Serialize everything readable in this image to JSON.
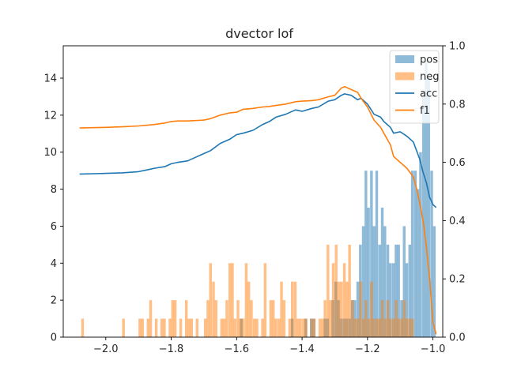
{
  "chart_data": {
    "type": "bar",
    "title": "dvector lof",
    "xlabel": "",
    "ylabel": "",
    "xlim": [
      -2.13,
      -0.97
    ],
    "ylim": [
      0,
      15.75
    ],
    "y2lim": [
      0,
      1
    ],
    "x_ticks": [
      -2.0,
      -1.8,
      -1.6,
      -1.4,
      -1.2,
      -1.0
    ],
    "x_tick_labels": [
      "−2.0",
      "−1.8",
      "−1.6",
      "−1.4",
      "−1.2",
      "−1.0"
    ],
    "y_ticks": [
      0,
      2,
      4,
      6,
      8,
      10,
      12,
      14
    ],
    "y_tick_labels": [
      "0",
      "2",
      "4",
      "6",
      "8",
      "10",
      "12",
      "14"
    ],
    "y2_ticks": [
      0,
      0.2,
      0.4,
      0.6,
      0.8,
      1.0
    ],
    "y2_tick_labels": [
      "0.0",
      "0.2",
      "0.4",
      "0.6",
      "0.8",
      "1.0"
    ],
    "legend_position": "top-right",
    "histograms": [
      {
        "name": "pos",
        "color": "#1f77b4",
        "alpha": 0.5,
        "bin_width": 0.0083,
        "bins": [
          [
            -1.59,
            1
          ],
          [
            -1.434,
            1
          ],
          [
            -1.393,
            1
          ],
          [
            -1.376,
            1
          ],
          [
            -1.368,
            1
          ],
          [
            -1.334,
            1
          ],
          [
            -1.326,
            1
          ],
          [
            -1.31,
            2
          ],
          [
            -1.301,
            3
          ],
          [
            -1.293,
            2
          ],
          [
            -1.285,
            1
          ],
          [
            -1.276,
            1
          ],
          [
            -1.268,
            1
          ],
          [
            -1.259,
            1
          ],
          [
            -1.251,
            2
          ],
          [
            -1.243,
            2
          ],
          [
            -1.234,
            3
          ],
          [
            -1.226,
            5
          ],
          [
            -1.217,
            6
          ],
          [
            -1.209,
            9
          ],
          [
            -1.201,
            7
          ],
          [
            -1.192,
            9
          ],
          [
            -1.184,
            6
          ],
          [
            -1.176,
            9
          ],
          [
            -1.167,
            5
          ],
          [
            -1.159,
            7
          ],
          [
            -1.151,
            6
          ],
          [
            -1.142,
            5
          ],
          [
            -1.134,
            4
          ],
          [
            -1.125,
            4
          ],
          [
            -1.117,
            5
          ],
          [
            -1.109,
            5
          ],
          [
            -1.1,
            2
          ],
          [
            -1.092,
            6
          ],
          [
            -1.084,
            4
          ],
          [
            -1.075,
            5
          ],
          [
            -1.067,
            9
          ],
          [
            -1.058,
            9
          ],
          [
            -1.05,
            8
          ],
          [
            -1.042,
            10
          ],
          [
            -1.033,
            13
          ],
          [
            -1.025,
            15
          ],
          [
            -1.017,
            14
          ],
          [
            -1.008,
            9
          ],
          [
            -1.0,
            6
          ]
        ]
      },
      {
        "name": "neg",
        "color": "#ff7f0e",
        "alpha": 0.5,
        "bin_width": 0.0083,
        "bins": [
          [
            -2.075,
            1
          ],
          [
            -1.95,
            1
          ],
          [
            -1.9,
            1
          ],
          [
            -1.892,
            1
          ],
          [
            -1.875,
            1
          ],
          [
            -1.867,
            2
          ],
          [
            -1.85,
            1
          ],
          [
            -1.833,
            1
          ],
          [
            -1.825,
            1
          ],
          [
            -1.808,
            1
          ],
          [
            -1.8,
            2
          ],
          [
            -1.792,
            2
          ],
          [
            -1.775,
            1
          ],
          [
            -1.758,
            2
          ],
          [
            -1.75,
            1
          ],
          [
            -1.742,
            1
          ],
          [
            -1.725,
            1
          ],
          [
            -1.7,
            1
          ],
          [
            -1.692,
            2
          ],
          [
            -1.684,
            4
          ],
          [
            -1.675,
            3
          ],
          [
            -1.667,
            2
          ],
          [
            -1.65,
            1
          ],
          [
            -1.642,
            1
          ],
          [
            -1.634,
            2
          ],
          [
            -1.625,
            4
          ],
          [
            -1.617,
            4
          ],
          [
            -1.609,
            1
          ],
          [
            -1.6,
            2
          ],
          [
            -1.592,
            1
          ],
          [
            -1.584,
            1
          ],
          [
            -1.575,
            4
          ],
          [
            -1.567,
            3
          ],
          [
            -1.559,
            2
          ],
          [
            -1.55,
            1
          ],
          [
            -1.542,
            1
          ],
          [
            -1.525,
            1
          ],
          [
            -1.517,
            4
          ],
          [
            -1.5,
            2
          ],
          [
            -1.492,
            2
          ],
          [
            -1.484,
            1
          ],
          [
            -1.475,
            1
          ],
          [
            -1.467,
            3
          ],
          [
            -1.459,
            2
          ],
          [
            -1.442,
            1
          ],
          [
            -1.434,
            3
          ],
          [
            -1.425,
            3
          ],
          [
            -1.417,
            1
          ],
          [
            -1.409,
            1
          ],
          [
            -1.4,
            1
          ],
          [
            -1.392,
            1
          ],
          [
            -1.375,
            1
          ],
          [
            -1.367,
            1
          ],
          [
            -1.35,
            1
          ],
          [
            -1.342,
            1
          ],
          [
            -1.334,
            2
          ],
          [
            -1.325,
            5
          ],
          [
            -1.317,
            2
          ],
          [
            -1.309,
            4
          ],
          [
            -1.3,
            5
          ],
          [
            -1.292,
            3
          ],
          [
            -1.284,
            3
          ],
          [
            -1.275,
            4
          ],
          [
            -1.267,
            3
          ],
          [
            -1.259,
            5
          ],
          [
            -1.25,
            2
          ],
          [
            -1.242,
            1
          ],
          [
            -1.234,
            1
          ],
          [
            -1.225,
            3
          ],
          [
            -1.217,
            1
          ],
          [
            -1.209,
            2
          ],
          [
            -1.2,
            1
          ],
          [
            -1.192,
            3
          ],
          [
            -1.184,
            1
          ],
          [
            -1.175,
            1
          ],
          [
            -1.167,
            1
          ],
          [
            -1.159,
            2
          ],
          [
            -1.15,
            1
          ],
          [
            -1.142,
            2
          ],
          [
            -1.134,
            1
          ],
          [
            -1.125,
            1
          ],
          [
            -1.117,
            2
          ],
          [
            -1.109,
            1
          ],
          [
            -1.1,
            1
          ],
          [
            -1.092,
            2
          ],
          [
            -1.084,
            1
          ],
          [
            -1.075,
            1
          ],
          [
            -1.067,
            1
          ]
        ]
      }
    ],
    "series": [
      {
        "name": "acc",
        "axis": "right",
        "color": "#1f77b4",
        "x": [
          -2.08,
          -2.0,
          -1.95,
          -1.9,
          -1.87,
          -1.85,
          -1.82,
          -1.8,
          -1.78,
          -1.75,
          -1.7,
          -1.68,
          -1.65,
          -1.62,
          -1.6,
          -1.58,
          -1.55,
          -1.52,
          -1.5,
          -1.48,
          -1.45,
          -1.42,
          -1.4,
          -1.37,
          -1.35,
          -1.32,
          -1.3,
          -1.28,
          -1.27,
          -1.25,
          -1.23,
          -1.22,
          -1.2,
          -1.18,
          -1.16,
          -1.15,
          -1.13,
          -1.12,
          -1.1,
          -1.08,
          -1.06,
          -1.05,
          -1.04,
          -1.03,
          -1.02,
          -1.01,
          -1.0,
          -0.99
        ],
        "y": [
          0.56,
          0.562,
          0.564,
          0.568,
          0.575,
          0.58,
          0.585,
          0.595,
          0.6,
          0.605,
          0.63,
          0.64,
          0.665,
          0.68,
          0.695,
          0.7,
          0.71,
          0.73,
          0.74,
          0.755,
          0.765,
          0.78,
          0.775,
          0.785,
          0.79,
          0.81,
          0.815,
          0.83,
          0.835,
          0.83,
          0.815,
          0.82,
          0.8,
          0.765,
          0.755,
          0.74,
          0.72,
          0.7,
          0.705,
          0.69,
          0.67,
          0.64,
          0.61,
          0.565,
          0.53,
          0.48,
          0.455,
          0.445
        ]
      },
      {
        "name": "f1",
        "axis": "right",
        "color": "#ff7f0e",
        "x": [
          -2.08,
          -2.0,
          -1.95,
          -1.9,
          -1.87,
          -1.85,
          -1.82,
          -1.8,
          -1.78,
          -1.75,
          -1.7,
          -1.68,
          -1.65,
          -1.62,
          -1.6,
          -1.58,
          -1.55,
          -1.52,
          -1.5,
          -1.48,
          -1.45,
          -1.42,
          -1.4,
          -1.37,
          -1.35,
          -1.32,
          -1.3,
          -1.28,
          -1.27,
          -1.25,
          -1.23,
          -1.22,
          -1.2,
          -1.18,
          -1.16,
          -1.15,
          -1.13,
          -1.12,
          -1.1,
          -1.08,
          -1.06,
          -1.05,
          -1.04,
          -1.03,
          -1.02,
          -1.01,
          -1.0,
          -0.99
        ],
        "y": [
          0.718,
          0.72,
          0.722,
          0.725,
          0.728,
          0.73,
          0.735,
          0.74,
          0.742,
          0.742,
          0.745,
          0.75,
          0.762,
          0.77,
          0.772,
          0.782,
          0.785,
          0.79,
          0.792,
          0.795,
          0.8,
          0.808,
          0.81,
          0.812,
          0.815,
          0.825,
          0.83,
          0.855,
          0.86,
          0.85,
          0.84,
          0.82,
          0.79,
          0.745,
          0.72,
          0.7,
          0.66,
          0.62,
          0.6,
          0.58,
          0.55,
          0.51,
          0.46,
          0.4,
          0.31,
          0.2,
          0.05,
          0.01
        ]
      }
    ]
  }
}
